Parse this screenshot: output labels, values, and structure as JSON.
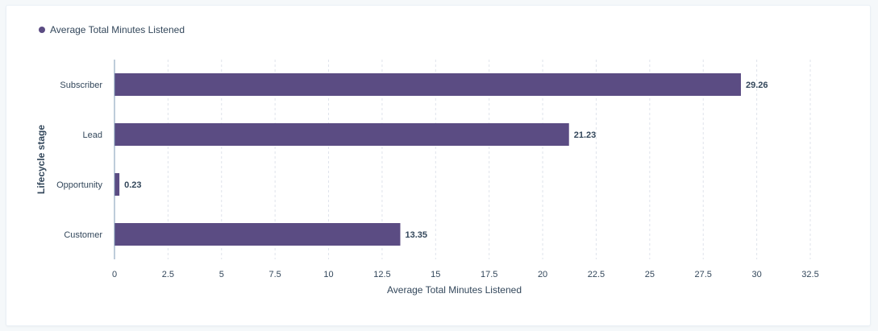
{
  "chart_data": {
    "type": "bar",
    "orientation": "horizontal",
    "categories": [
      "Subscriber",
      "Lead",
      "Opportunity",
      "Customer"
    ],
    "series": [
      {
        "name": "Average Total Minutes Listened",
        "values": [
          29.26,
          21.23,
          0.23,
          13.35
        ],
        "color": "#5b4c83"
      }
    ],
    "value_labels": [
      "29.26",
      "21.23",
      "0.23",
      "13.35"
    ],
    "xlabel": "Average Total Minutes Listened",
    "ylabel": "Lifecycle stage",
    "xlim": [
      0,
      32.5
    ],
    "xticks": [
      0,
      2.5,
      5,
      7.5,
      10,
      12.5,
      15,
      17.5,
      20,
      22.5,
      25,
      27.5,
      30,
      32.5
    ],
    "xtick_labels": [
      "0",
      "2.5",
      "5",
      "7.5",
      "10",
      "12.5",
      "15",
      "17.5",
      "20",
      "22.5",
      "25",
      "27.5",
      "30",
      "32.5"
    ],
    "grid": true,
    "grid_style": "dashed-vertical",
    "legend_position": "top-left"
  },
  "legend": {
    "label": "Average Total Minutes Listened",
    "color": "#5b4c83"
  }
}
